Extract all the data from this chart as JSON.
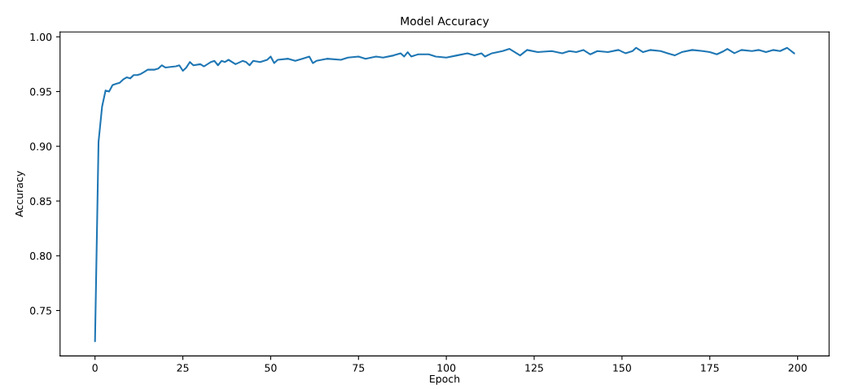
{
  "chart_data": {
    "type": "line",
    "title": "Model Accuracy",
    "xlabel": "Epoch",
    "ylabel": "Accuracy",
    "xlim": [
      -9.95,
      208.95
    ],
    "ylim": [
      0.7085,
      1.0045
    ],
    "xticks": [
      0,
      25,
      50,
      75,
      100,
      125,
      150,
      175,
      200
    ],
    "yticks": [
      {
        "value": 0.75,
        "label": "0.75"
      },
      {
        "value": 0.8,
        "label": "0.80"
      },
      {
        "value": 0.85,
        "label": "0.85"
      },
      {
        "value": 0.9,
        "label": "0.90"
      },
      {
        "value": 0.95,
        "label": "0.95"
      },
      {
        "value": 1.0,
        "label": "1.00"
      }
    ],
    "grid": false,
    "series": [
      {
        "color": "#1f77b4",
        "x": [
          0,
          1,
          2,
          3,
          4,
          5,
          6,
          7,
          8,
          9,
          10,
          11,
          12,
          13,
          14,
          15,
          17,
          18,
          19,
          20,
          23,
          24,
          25,
          26,
          27,
          28,
          30,
          31,
          33,
          34,
          35,
          36,
          37,
          38,
          40,
          42,
          43,
          44,
          45,
          47,
          49,
          50,
          51,
          52,
          55,
          57,
          59,
          61,
          62,
          63,
          66,
          70,
          72,
          75,
          77,
          80,
          82,
          85,
          87,
          88,
          89,
          90,
          92,
          95,
          97,
          100,
          103,
          106,
          108,
          110,
          111,
          113,
          116,
          118,
          121,
          123,
          126,
          130,
          133,
          135,
          137,
          139,
          141,
          143,
          146,
          149,
          151,
          153,
          154,
          156,
          158,
          161,
          163,
          165,
          167,
          170,
          173,
          175,
          177,
          179,
          180,
          182,
          184,
          187,
          189,
          191,
          193,
          195,
          197,
          199
        ],
        "values": [
          0.722,
          0.904,
          0.936,
          0.951,
          0.95,
          0.956,
          0.957,
          0.958,
          0.961,
          0.963,
          0.962,
          0.965,
          0.965,
          0.966,
          0.968,
          0.97,
          0.97,
          0.971,
          0.974,
          0.972,
          0.973,
          0.974,
          0.969,
          0.972,
          0.977,
          0.974,
          0.975,
          0.973,
          0.977,
          0.978,
          0.974,
          0.978,
          0.977,
          0.979,
          0.975,
          0.978,
          0.977,
          0.974,
          0.978,
          0.977,
          0.979,
          0.982,
          0.976,
          0.979,
          0.98,
          0.978,
          0.98,
          0.982,
          0.976,
          0.978,
          0.98,
          0.979,
          0.981,
          0.982,
          0.98,
          0.982,
          0.981,
          0.983,
          0.985,
          0.982,
          0.986,
          0.982,
          0.984,
          0.984,
          0.982,
          0.981,
          0.983,
          0.985,
          0.983,
          0.985,
          0.982,
          0.985,
          0.987,
          0.989,
          0.983,
          0.988,
          0.986,
          0.987,
          0.985,
          0.987,
          0.986,
          0.988,
          0.984,
          0.987,
          0.986,
          0.988,
          0.985,
          0.987,
          0.99,
          0.986,
          0.988,
          0.987,
          0.985,
          0.983,
          0.986,
          0.988,
          0.987,
          0.986,
          0.984,
          0.987,
          0.989,
          0.985,
          0.988,
          0.987,
          0.988,
          0.986,
          0.988,
          0.987,
          0.99,
          0.985
        ]
      }
    ]
  }
}
